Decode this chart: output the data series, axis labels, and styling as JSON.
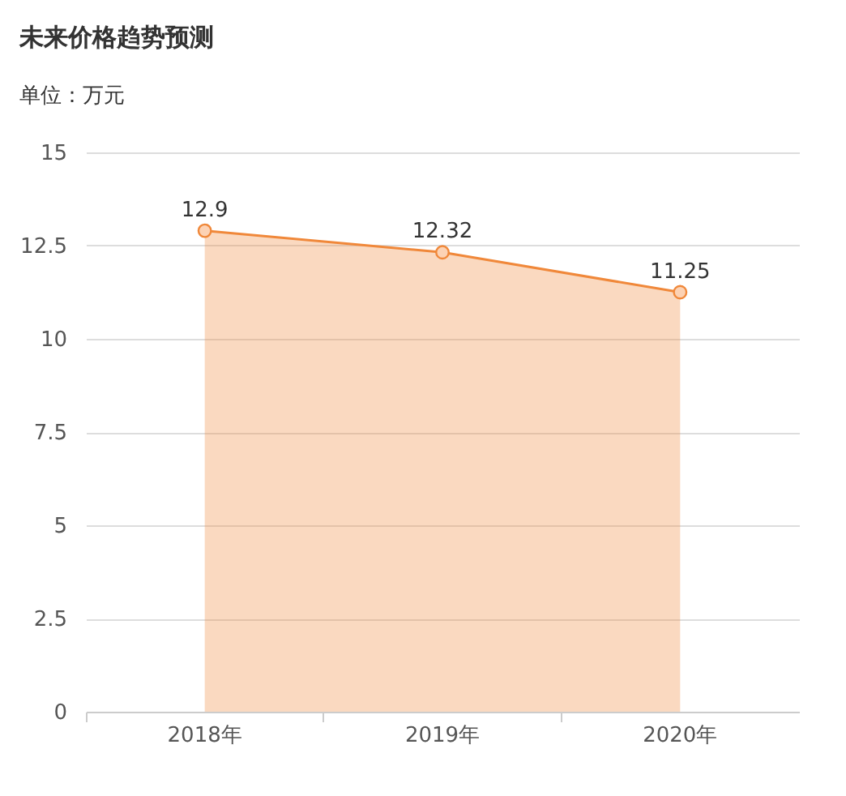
{
  "chart_data": {
    "type": "area",
    "title": "未来价格趋势预测",
    "ylabel": "单位：万元",
    "categories": [
      "2018年",
      "2019年",
      "2020年"
    ],
    "series": [
      {
        "color": "#f0883a",
        "values": [
          12.9,
          12.32,
          11.25
        ]
      }
    ],
    "ylim": [
      0,
      15
    ],
    "yticks": [
      0,
      {
        "value": 2.5,
        "label": "2.5"
      },
      5,
      {
        "value": 7.5,
        "label": "7.5"
      },
      10,
      {
        "value": 12.5,
        "label": "12.5"
      },
      15
    ],
    "grid": "y",
    "marker": "circle",
    "data_labels": true
  }
}
